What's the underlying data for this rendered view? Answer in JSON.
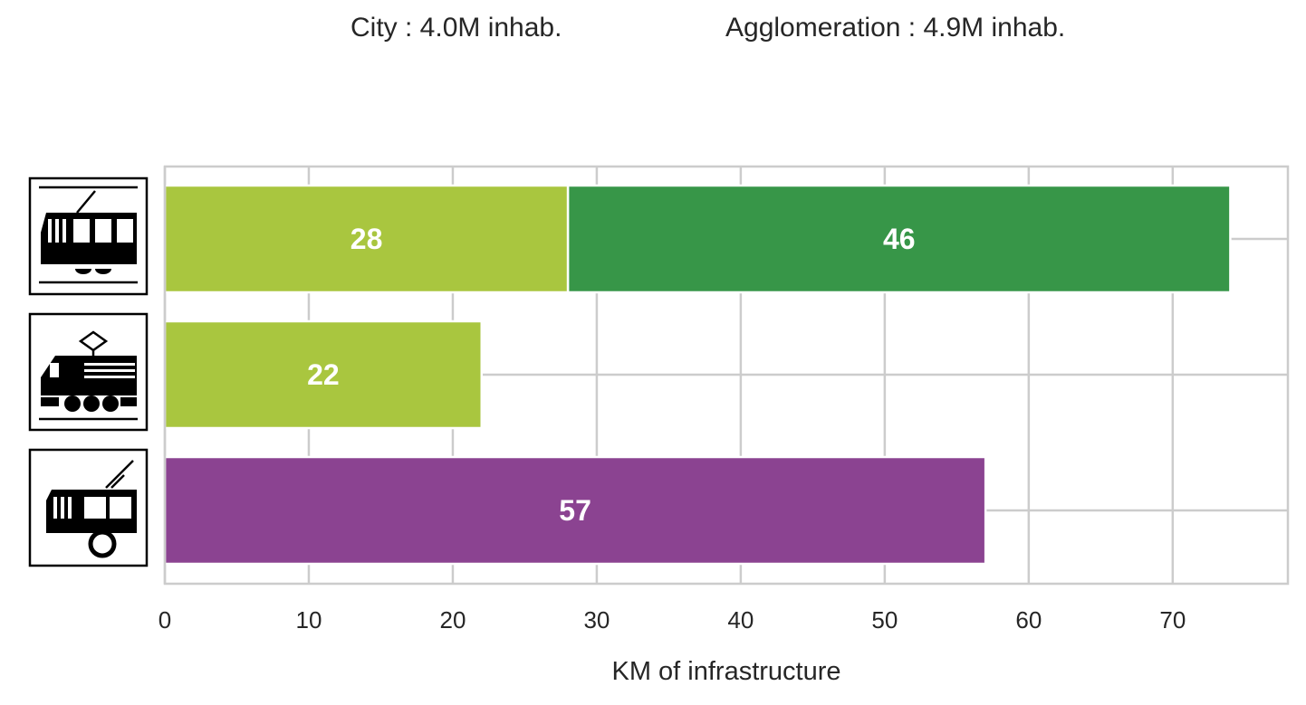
{
  "header": {
    "city": "City : 4.0M inhab.",
    "agglomeration": "Agglomeration : 4.9M inhab."
  },
  "chart_data": {
    "type": "bar",
    "orientation": "horizontal",
    "stacked": true,
    "categories": [
      "tram",
      "train",
      "trolleybus"
    ],
    "category_icons": [
      "tram-icon",
      "train-icon",
      "trolleybus-icon"
    ],
    "segments": [
      {
        "category": "tram",
        "value": 28,
        "color": "#a9c63f"
      },
      {
        "category": "tram",
        "value": 46,
        "color": "#379648"
      },
      {
        "category": "train",
        "value": 22,
        "color": "#a9c63f"
      },
      {
        "category": "trolleybus",
        "value": 57,
        "color": "#8b4391"
      }
    ],
    "xlabel": "KM of infrastructure",
    "ylabel": "",
    "xlim": [
      0,
      78
    ],
    "xticks": [
      0,
      10,
      20,
      30,
      40,
      50,
      60,
      70
    ],
    "grid": true,
    "legend": "none",
    "colors": {
      "grid": "#cccccc",
      "frame": "#cccccc",
      "label": "#ffffff"
    }
  }
}
